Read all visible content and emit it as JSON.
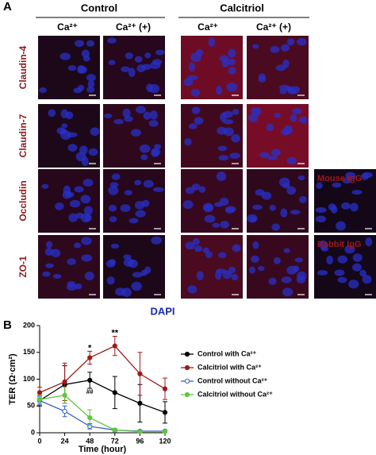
{
  "panel_a": {
    "label": "A",
    "groups": [
      "Control",
      "Calcitriol"
    ],
    "columns": [
      "Ca²⁺",
      "Ca²⁺ (+)",
      "Ca²⁺",
      "Ca²⁺ (+)"
    ],
    "rows": [
      "Claudin-4",
      "Claudin-7",
      "Occludin",
      "ZO-1"
    ],
    "controls": [
      "Mouse IgG",
      "Rabbit IgG"
    ],
    "stain": "DAPI"
  },
  "panel_b": {
    "label": "B"
  },
  "chart_data": {
    "type": "line",
    "x_label": "Time (hour)",
    "y_label": "TER (Ω·cm²)",
    "x": [
      0,
      24,
      48,
      72,
      96,
      120
    ],
    "xlim": [
      0,
      120
    ],
    "xticks": [
      0,
      24,
      48,
      72,
      96,
      120
    ],
    "ylim": [
      0,
      200
    ],
    "yticks": [
      0,
      50,
      100,
      150,
      200
    ],
    "series": [
      {
        "name": "Control with Ca²⁺",
        "color": "#000000",
        "values": [
          60,
          90,
          98,
          75,
          55,
          38
        ],
        "errors": [
          10,
          35,
          15,
          30,
          35,
          20
        ]
      },
      {
        "name": "Calcitriol with Ca²⁺",
        "color": "#a01818",
        "values": [
          75,
          95,
          140,
          162,
          110,
          82
        ],
        "errors": [
          10,
          35,
          12,
          18,
          40,
          20
        ]
      },
      {
        "name": "Control without Ca²⁺",
        "color": "#3a5fc8",
        "values": [
          60,
          40,
          12,
          5,
          3,
          3
        ],
        "errors": [
          8,
          10,
          5,
          3,
          2,
          2
        ]
      },
      {
        "name": "Calcitriol without Ca²⁺",
        "color": "#5cc83a",
        "values": [
          62,
          70,
          28,
          5,
          2,
          2
        ],
        "errors": [
          8,
          15,
          15,
          3,
          2,
          2
        ]
      }
    ],
    "annotations": [
      "*",
      "**",
      "##"
    ]
  }
}
